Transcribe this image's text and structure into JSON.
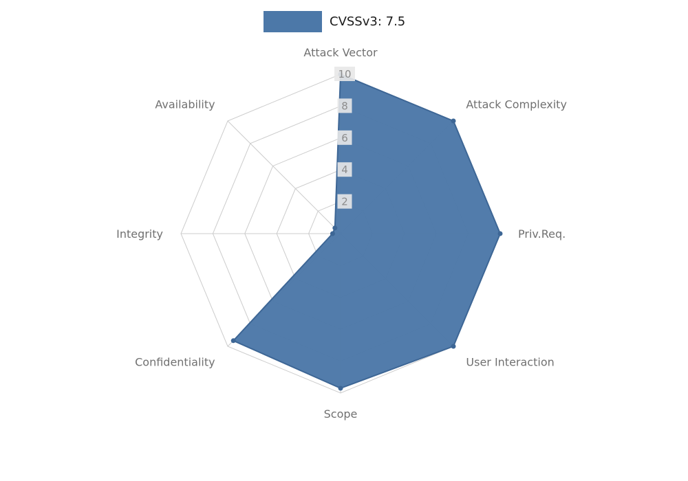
{
  "figure": {
    "background": "#ffffff"
  },
  "legend": {
    "label": "CVSSv3: 7.5",
    "swatch_color": "#4c78a8"
  },
  "chart_data": {
    "type": "radar",
    "title": "CVSSv3: 7.5",
    "categories": [
      "Attack Vector",
      "Attack Complexity",
      "Priv.Req.",
      "User Interaction",
      "Scope",
      "Confidentiality",
      "Integrity",
      "Availability"
    ],
    "series": [
      {
        "name": "CVSSv3: 7.5",
        "values": [
          10,
          10,
          10,
          10,
          9.7,
          9.5,
          0.5,
          0.5
        ]
      }
    ],
    "scale": {
      "min": 0,
      "max": 10,
      "ticks": [
        2,
        4,
        6,
        8,
        10
      ]
    },
    "grid": true,
    "legend_position": "top",
    "colors": {
      "fill": "#4c78a8",
      "stroke": "#3d6695",
      "grid": "#cccccc",
      "axis_label": "#707070",
      "tick_label": "#8c8c8c",
      "tick_bg": "#e8e8e8",
      "legend_text": "#1a1a1a"
    }
  }
}
